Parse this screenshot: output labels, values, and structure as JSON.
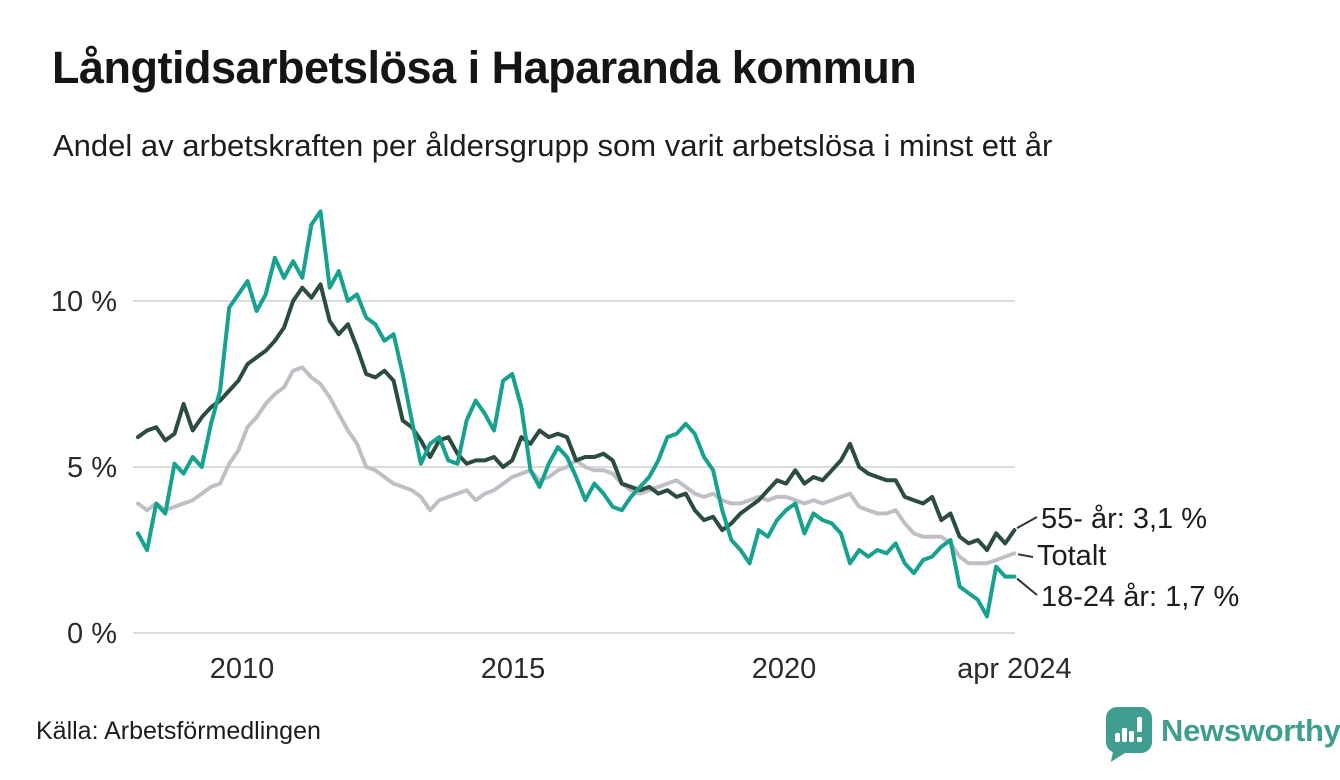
{
  "header": {
    "title": "Långtidsarbetslösa i Haparanda kommun",
    "subtitle": "Andel av arbetskraften per åldersgrupp som varit arbetslösa i minst ett år"
  },
  "footer": {
    "source": "Källa: Arbetsförmedlingen",
    "brand": "Newsworthy"
  },
  "colors": {
    "series_55": "#2c4c3f",
    "series_total": "#c0bfc6",
    "series_1824": "#16a28e",
    "gridline": "#dcdcdc",
    "tick_text": "#2b2b2b",
    "connector": "#333333",
    "brand_teal": "#3f9e8f"
  },
  "chart_data": {
    "type": "line",
    "title": "Långtidsarbetslösa i Haparanda kommun",
    "subtitle": "Andel av arbetskraften per åldersgrupp som varit arbetslösa i minst ett år",
    "unit": "% av arbetskraften",
    "x_start": 2008.08,
    "x_step": 0.16844,
    "x_ticks": [
      {
        "year": 2010,
        "label": "2010"
      },
      {
        "year": 2015,
        "label": "2015"
      },
      {
        "year": 2020,
        "label": "2020"
      },
      {
        "year": 2024.25,
        "label": "apr 2024"
      }
    ],
    "y_ticks": [
      {
        "value": 0,
        "label": "0 %"
      },
      {
        "value": 5,
        "label": "5 %"
      },
      {
        "value": 10,
        "label": "10 %"
      }
    ],
    "ylim": [
      0,
      13.5
    ],
    "grid": "horizontal-only",
    "legend_position": "right-end-labels",
    "series": [
      {
        "name": "55- år",
        "color": "#2c4c3f",
        "end_label": "55- år: 3,1 %",
        "latest_value": 3.1,
        "values": [
          5.9,
          6.1,
          6.2,
          5.8,
          6.0,
          6.9,
          6.1,
          6.5,
          6.8,
          7.0,
          7.3,
          7.6,
          8.1,
          8.3,
          8.5,
          8.8,
          9.2,
          10.0,
          10.4,
          10.1,
          10.5,
          9.4,
          9.0,
          9.3,
          8.6,
          7.8,
          7.7,
          7.9,
          7.6,
          6.4,
          6.2,
          5.8,
          5.3,
          5.8,
          5.9,
          5.4,
          5.1,
          5.2,
          5.2,
          5.3,
          5.0,
          5.2,
          5.9,
          5.7,
          6.1,
          5.9,
          6.0,
          5.9,
          5.2,
          5.3,
          5.3,
          5.4,
          5.2,
          4.5,
          4.4,
          4.3,
          4.4,
          4.2,
          4.3,
          4.1,
          4.2,
          3.7,
          3.4,
          3.5,
          3.1,
          3.3,
          3.6,
          3.8,
          4.0,
          4.3,
          4.6,
          4.5,
          4.9,
          4.5,
          4.7,
          4.6,
          4.9,
          5.2,
          5.7,
          5.0,
          4.8,
          4.7,
          4.6,
          4.6,
          4.1,
          4.0,
          3.9,
          4.1,
          3.4,
          3.6,
          2.9,
          2.7,
          2.8,
          2.5,
          3.0,
          2.7,
          3.1
        ]
      },
      {
        "name": "Totalt",
        "color": "#c0bfc6",
        "end_label": "Totalt",
        "latest_value": 2.4,
        "values": [
          3.9,
          3.7,
          3.9,
          3.7,
          3.8,
          3.9,
          4.0,
          4.2,
          4.4,
          4.5,
          5.1,
          5.5,
          6.2,
          6.5,
          6.9,
          7.2,
          7.4,
          7.9,
          8.0,
          7.7,
          7.5,
          7.1,
          6.6,
          6.1,
          5.7,
          5.0,
          4.9,
          4.7,
          4.5,
          4.4,
          4.3,
          4.1,
          3.7,
          4.0,
          4.1,
          4.2,
          4.3,
          4.0,
          4.2,
          4.3,
          4.5,
          4.7,
          4.8,
          4.9,
          4.6,
          4.7,
          4.9,
          5.0,
          5.2,
          5.0,
          4.9,
          4.9,
          4.8,
          4.5,
          4.3,
          4.2,
          4.3,
          4.4,
          4.5,
          4.6,
          4.4,
          4.2,
          4.1,
          4.2,
          4.0,
          3.9,
          3.9,
          4.0,
          4.1,
          4.0,
          4.1,
          4.1,
          4.0,
          3.9,
          4.0,
          3.9,
          4.0,
          4.1,
          4.2,
          3.8,
          3.7,
          3.6,
          3.6,
          3.7,
          3.3,
          3.0,
          2.9,
          2.9,
          2.9,
          2.7,
          2.3,
          2.1,
          2.1,
          2.1,
          2.2,
          2.3,
          2.4
        ]
      },
      {
        "name": "18-24 år",
        "color": "#16a28e",
        "end_label": "18-24 år: 1,7 %",
        "latest_value": 1.7,
        "values": [
          3.0,
          2.5,
          3.9,
          3.6,
          5.1,
          4.8,
          5.3,
          5.0,
          6.3,
          7.3,
          9.8,
          10.2,
          10.6,
          9.7,
          10.2,
          11.3,
          10.7,
          11.2,
          10.7,
          12.3,
          12.7,
          10.4,
          10.9,
          10.0,
          10.2,
          9.5,
          9.3,
          8.8,
          9.0,
          7.8,
          6.4,
          5.1,
          5.7,
          5.9,
          5.2,
          5.1,
          6.4,
          7.0,
          6.6,
          6.1,
          7.6,
          7.8,
          6.8,
          4.9,
          4.4,
          5.1,
          5.6,
          5.3,
          4.7,
          4.0,
          4.5,
          4.2,
          3.8,
          3.7,
          4.1,
          4.4,
          4.7,
          5.2,
          5.9,
          6.0,
          6.3,
          6.0,
          5.3,
          4.9,
          3.7,
          2.8,
          2.5,
          2.1,
          3.1,
          2.9,
          3.4,
          3.7,
          3.9,
          3.0,
          3.6,
          3.4,
          3.3,
          3.0,
          2.1,
          2.5,
          2.3,
          2.5,
          2.4,
          2.7,
          2.1,
          1.8,
          2.2,
          2.3,
          2.6,
          2.8,
          1.4,
          1.2,
          1.0,
          0.5,
          2.0,
          1.7,
          1.7
        ]
      }
    ]
  }
}
